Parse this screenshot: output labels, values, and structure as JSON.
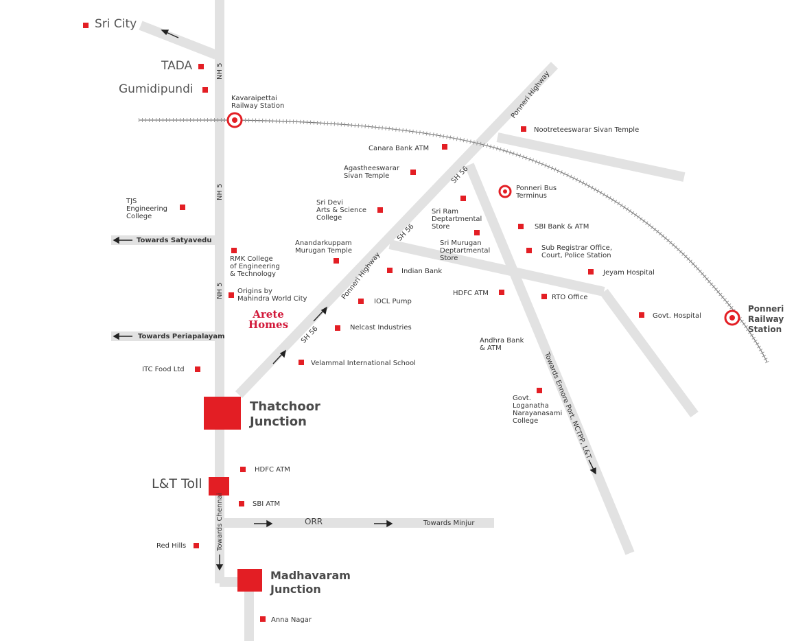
{
  "map": {
    "accent_color": "#e31e24",
    "road_color": "#e2e2e2",
    "brand_color": "#d2193a",
    "places": {
      "sri_city": "Sri City",
      "tada": "TADA",
      "gumidipundi": "Gumidipundi",
      "kavaraipettai": "Kavaraipettai\nRailway Station",
      "tjs": "TJS\nEngineering\nCollege",
      "rmk": "RMK College\nof Engineering\n& Technology",
      "origins": "Origins by\nMahindra World City",
      "itc": "ITC Food Ltd",
      "canara": "Canara Bank ATM",
      "agastheeswarar": "Agastheeswarar\nSivan Temple",
      "sri_devi": "Sri Devi\nArts & Science\nCollege",
      "anandarkuppam": "Anandarkuppam\nMurugan Temple",
      "indian_bank": "Indian Bank",
      "iocl": "IOCL Pump",
      "nelcast": "Nelcast Industries",
      "velammal": "Velammal International School",
      "sri_ram": "Sri Ram\nDeptartmental\nStore",
      "sri_murugan": "Sri Murugan\nDeptartmental\nStore",
      "hdfc_atm_mid": "HDFC ATM",
      "nootreteeswarar": "Nootreteeswarar Sivan Temple",
      "ponneri_bus": "Ponneri Bus\nTerminus",
      "sbi_bank": "SBI Bank & ATM",
      "sub_registrar": "Sub Registrar Office,\nCourt, Police Station",
      "jeyam": "Jeyam Hospital",
      "rto": "RTO Office",
      "govt_hospital": "Govt. Hospital",
      "andhra_bank": "Andhra Bank\n& ATM",
      "govt_college": "Govt.\nLoganatha\nNarayanasami\nCollege",
      "ponneri_station": "Ponneri\nRailway\nStation",
      "hdfc_atm_south": "HDFC ATM",
      "sbi_atm": "SBI ATM",
      "red_hills": "Red Hills",
      "anna_nagar": "Anna Nagar"
    },
    "junctions": {
      "thatchoor": "Thatchoor\nJunction",
      "lt_toll": "L&T Toll",
      "madhavaram": "Madhavaram\nJunction"
    },
    "brand": "Arete\nHomes",
    "roads": {
      "nh5": "NH 5",
      "towards_satyavedu": "Towards Satyavedu",
      "towards_periapalayam": "Towards Periapalayam",
      "sh56": "SH 56",
      "ponneri_highway": "Ponneri Highway",
      "towards_ennore": "Towards Ennore Port, NCTPP, L&T",
      "towards_chennai": "Towards Chennai",
      "orr": "ORR",
      "towards_minjur": "Towards Minjur"
    }
  }
}
